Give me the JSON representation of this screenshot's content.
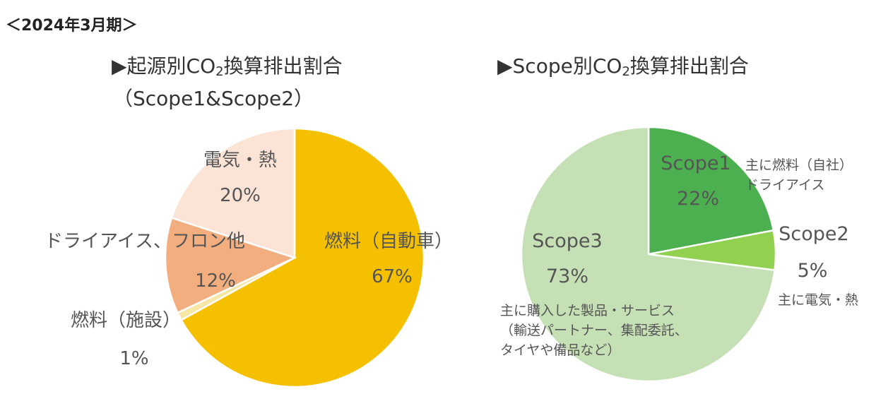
{
  "period": "＜2024年3月期＞",
  "chart_data": [
    {
      "type": "pie",
      "title_prefix": "▶起源別CO",
      "title_sub": "2",
      "title_suffix": "換算排出割合",
      "subtitle": "（Scope1&Scope2）",
      "slices": [
        {
          "label": "燃料（自動車）",
          "value": 67,
          "value_label": "67%",
          "color": "#F5C000"
        },
        {
          "label": "燃料（施設）",
          "value": 1,
          "value_label": "1%",
          "color": "#F7E7A6"
        },
        {
          "label": "ドライアイス、フロン他",
          "value": 12,
          "value_label": "12%",
          "color": "#F2AE7E"
        },
        {
          "label": "電気・熱",
          "value": 20,
          "value_label": "20%",
          "color": "#FBE3D6"
        }
      ]
    },
    {
      "type": "pie",
      "title_prefix": "▶Scope別CO",
      "title_sub": "2",
      "title_suffix": "換算排出割合",
      "slices": [
        {
          "label": "Scope1",
          "value": 22,
          "value_label": "22%",
          "color": "#4CB050",
          "note": [
            "主に燃料（自社）",
            "ドライアイス"
          ]
        },
        {
          "label": "Scope2",
          "value": 5,
          "value_label": "5%",
          "color": "#92D050",
          "note": [
            "主に電気・熱"
          ]
        },
        {
          "label": "Scope3",
          "value": 73,
          "value_label": "73%",
          "color": "#C5E0B4",
          "note": [
            "主に購入した製品・サービス",
            "（輸送パートナー、集配委託、",
            "タイヤや備品など）"
          ]
        }
      ]
    }
  ]
}
